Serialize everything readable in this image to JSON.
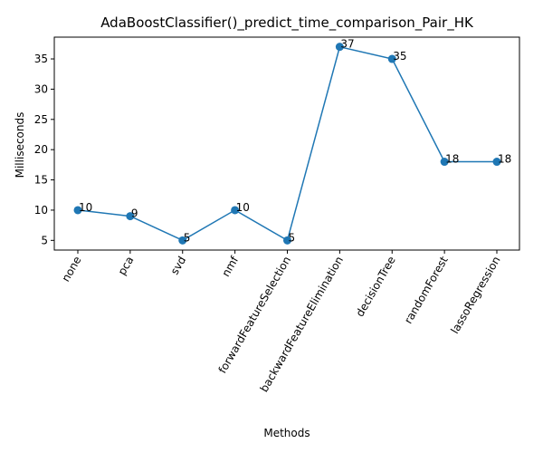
{
  "chart_data": {
    "type": "line",
    "title": "AdaBoostClassifier()_predict_time_comparison_Pair_HK",
    "xlabel": "Methods",
    "ylabel": "Milliseconds",
    "categories": [
      "none",
      "pca",
      "svd",
      "nmf",
      "forwardFeatureSelection",
      "backwardFeatureElimination",
      "decisionTree",
      "randomForest",
      "lassoRegression"
    ],
    "values": [
      10,
      9,
      5,
      10,
      5,
      37,
      35,
      18,
      18
    ],
    "data_labels": [
      "10",
      "9",
      "5",
      "10",
      "5",
      "37",
      "35",
      "18",
      "18"
    ],
    "yticks": [
      5,
      10,
      15,
      20,
      25,
      30,
      35
    ],
    "ylim": [
      3.4,
      38.6
    ],
    "xtick_rotation": -60,
    "grid": false,
    "legend": "none",
    "colors": {
      "line": "#1f77b4",
      "marker": "#1f77b4",
      "axes": "#000000"
    }
  }
}
